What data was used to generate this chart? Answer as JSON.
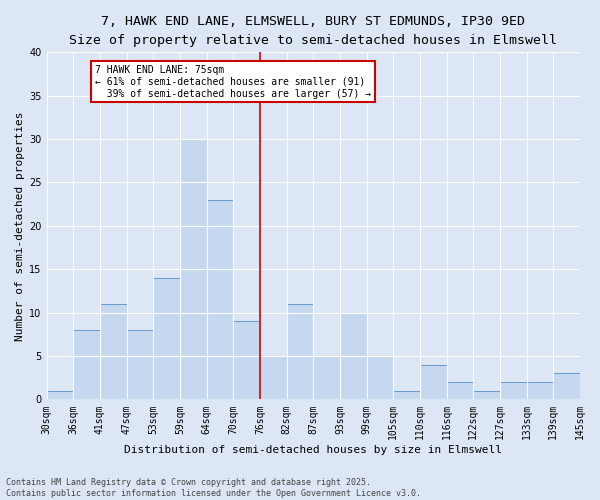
{
  "title_line1": "7, HAWK END LANE, ELMSWELL, BURY ST EDMUNDS, IP30 9ED",
  "title_line2": "Size of property relative to semi-detached houses in Elmswell",
  "xlabel": "Distribution of semi-detached houses by size in Elmswell",
  "ylabel": "Number of semi-detached properties",
  "bar_labels": [
    "30sqm",
    "36sqm",
    "41sqm",
    "47sqm",
    "53sqm",
    "59sqm",
    "64sqm",
    "70sqm",
    "76sqm",
    "82sqm",
    "87sqm",
    "93sqm",
    "99sqm",
    "105sqm",
    "110sqm",
    "116sqm",
    "122sqm",
    "127sqm",
    "133sqm",
    "139sqm",
    "145sqm"
  ],
  "bar_heights": [
    1,
    8,
    11,
    8,
    14,
    30,
    23,
    9,
    5,
    11,
    5,
    10,
    5,
    1,
    4,
    2,
    1,
    2,
    2,
    3
  ],
  "bar_color": "#c5d8f0",
  "bar_edge_color": "#6699cc",
  "vline_color": "#cc0000",
  "property_label": "7 HAWK END LANE: 75sqm",
  "pct_smaller": 61,
  "n_smaller": 91,
  "pct_larger": 39,
  "n_larger": 57,
  "annotation_box_color": "#cc0000",
  "ylim": [
    0,
    40
  ],
  "yticks": [
    0,
    5,
    10,
    15,
    20,
    25,
    30,
    35,
    40
  ],
  "background_color": "#dce6f5",
  "plot_bg_color": "#dce6f5",
  "footer_line1": "Contains HM Land Registry data © Crown copyright and database right 2025.",
  "footer_line2": "Contains public sector information licensed under the Open Government Licence v3.0.",
  "title_fontsize": 9.5,
  "subtitle_fontsize": 8.5,
  "axis_label_fontsize": 8,
  "tick_fontsize": 7,
  "annotation_fontsize": 7,
  "footer_fontsize": 6,
  "vline_bar_index": 8
}
